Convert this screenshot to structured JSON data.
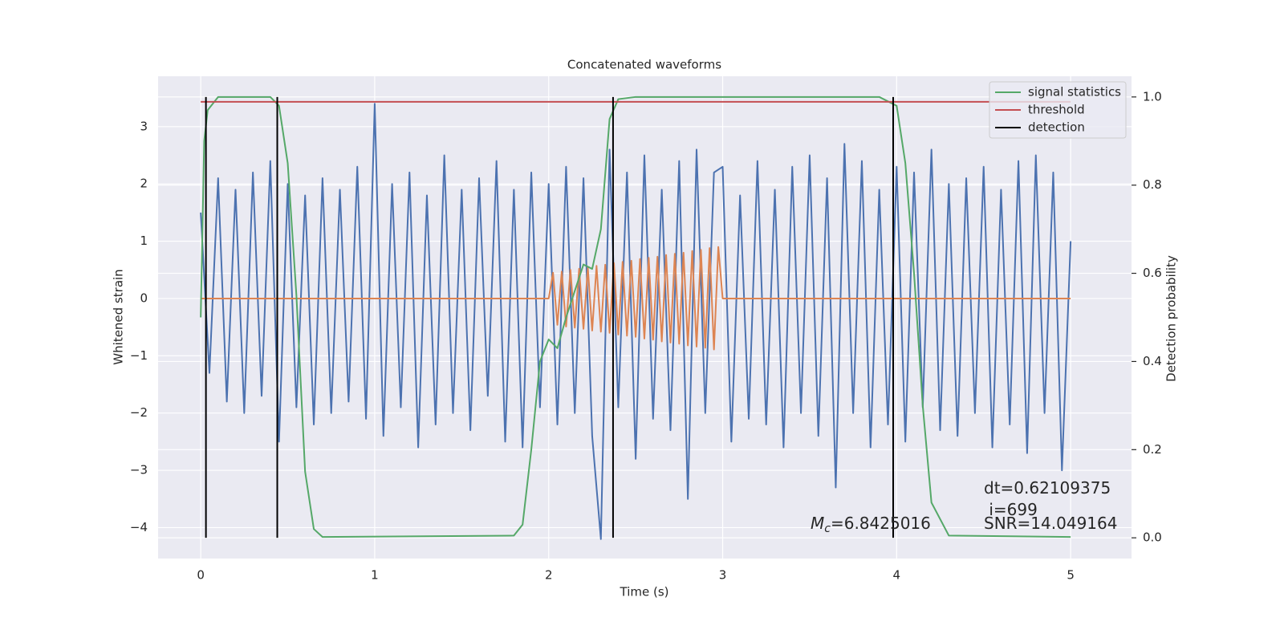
{
  "chart_data": {
    "type": "line",
    "title": "Concatenated waveforms",
    "xlabel": "Time (s)",
    "ylabel": "Whitened strain",
    "y2label": "Detection probability",
    "xlim": [
      -0.245,
      5.35
    ],
    "ylim": [
      -4.54,
      3.88
    ],
    "y2lim": [
      -0.047,
      1.047
    ],
    "xticks": [
      0,
      1,
      2,
      3,
      4,
      5
    ],
    "yticks": [
      {
        "value": -4,
        "label": "−4"
      },
      {
        "value": -3,
        "label": "−3"
      },
      {
        "value": -2,
        "label": "−2"
      },
      {
        "value": -1,
        "label": "−1"
      },
      0,
      1,
      2,
      3
    ],
    "y2ticks": [
      {
        "value": 0,
        "label": "0.0"
      },
      0.2,
      0.4,
      0.6,
      0.8,
      {
        "value": 1,
        "label": "1.0"
      }
    ],
    "grid": true,
    "legend": "upper right",
    "series": [
      {
        "color": "#4c72b0",
        "axis": "y",
        "x": [
          0,
          0.05,
          0.1,
          0.15,
          0.2,
          0.25,
          0.3,
          0.35,
          0.4,
          0.45,
          0.5,
          0.55,
          0.6,
          0.65,
          0.7,
          0.75,
          0.8,
          0.85,
          0.9,
          0.95,
          1,
          1.05,
          1.1,
          1.15,
          1.2,
          1.25,
          1.3,
          1.35,
          1.4,
          1.45,
          1.5,
          1.55,
          1.6,
          1.65,
          1.7,
          1.75,
          1.8,
          1.85,
          1.9,
          1.95,
          2,
          2.05,
          2.1,
          2.15,
          2.2,
          2.25,
          2.3,
          2.35,
          2.4,
          2.45,
          2.5,
          2.55,
          2.6,
          2.65,
          2.7,
          2.75,
          2.8,
          2.85,
          2.9,
          2.95,
          3,
          3.05,
          3.1,
          3.15,
          3.2,
          3.25,
          3.3,
          3.35,
          3.4,
          3.45,
          3.5,
          3.55,
          3.6,
          3.65,
          3.7,
          3.75,
          3.8,
          3.85,
          3.9,
          3.95,
          4,
          4.05,
          4.1,
          4.15,
          4.2,
          4.25,
          4.3,
          4.35,
          4.4,
          4.45,
          4.5,
          4.55,
          4.6,
          4.65,
          4.7,
          4.75,
          4.8,
          4.85,
          4.9,
          4.95,
          5
        ],
        "values": [
          1.5,
          -1.3,
          2.1,
          -1.8,
          1.9,
          -2.0,
          2.2,
          -1.7,
          2.4,
          -2.5,
          2.0,
          -1.9,
          1.8,
          -2.2,
          2.1,
          -2.0,
          1.9,
          -1.8,
          2.3,
          -2.1,
          3.4,
          -2.4,
          2.0,
          -1.9,
          2.2,
          -2.6,
          1.8,
          -2.2,
          2.5,
          -2.0,
          1.9,
          -2.3,
          2.1,
          -1.7,
          2.4,
          -2.5,
          1.9,
          -2.6,
          2.2,
          -1.9,
          2.0,
          -2.2,
          2.3,
          -2.0,
          2.1,
          -2.4,
          -4.2,
          2.6,
          -1.9,
          2.2,
          -2.8,
          2.5,
          -2.1,
          1.9,
          -2.3,
          2.4,
          -3.5,
          2.6,
          -2.0,
          2.2,
          2.3,
          -2.5,
          1.8,
          -2.1,
          2.4,
          -2.2,
          1.9,
          -2.6,
          2.3,
          -2.0,
          2.5,
          -2.4,
          2.1,
          -3.3,
          2.7,
          -2.0,
          2.4,
          -2.6,
          1.9,
          -2.2,
          2.3,
          -2.5,
          2.2,
          -1.9,
          2.6,
          -2.3,
          2.0,
          -2.4,
          2.1,
          -2.0,
          2.3,
          -2.6,
          1.9,
          -2.2,
          2.4,
          -2.7,
          2.5,
          -2.0,
          2.2,
          -3.0,
          1.0
        ]
      },
      {
        "color": "#dd8452",
        "axis": "y",
        "x": [
          0,
          2,
          2.025,
          2.05,
          2.075,
          2.1,
          2.125,
          2.15,
          2.175,
          2.2,
          2.225,
          2.25,
          2.275,
          2.3,
          2.325,
          2.35,
          2.375,
          2.4,
          2.425,
          2.45,
          2.475,
          2.5,
          2.525,
          2.55,
          2.575,
          2.6,
          2.625,
          2.65,
          2.675,
          2.7,
          2.725,
          2.75,
          2.775,
          2.8,
          2.825,
          2.85,
          2.875,
          2.9,
          2.925,
          2.95,
          2.975,
          3,
          5
        ],
        "values": [
          0,
          0,
          0.45,
          -0.46,
          0.47,
          -0.49,
          0.5,
          -0.51,
          0.52,
          -0.53,
          0.54,
          -0.56,
          0.57,
          -0.58,
          0.59,
          -0.6,
          0.62,
          -0.63,
          0.64,
          -0.65,
          0.66,
          -0.67,
          0.69,
          -0.7,
          0.71,
          -0.72,
          0.73,
          -0.75,
          0.76,
          -0.77,
          0.78,
          -0.79,
          0.8,
          -0.82,
          0.83,
          -0.84,
          0.85,
          -0.86,
          0.88,
          -0.89,
          0.9,
          0,
          0
        ]
      },
      {
        "name": "signal statistics",
        "color": "#55a868",
        "axis": "y2",
        "x": [
          0,
          0.02,
          0.04,
          0.1,
          0.4,
          0.45,
          0.5,
          0.55,
          0.6,
          0.65,
          0.7,
          1.8,
          1.85,
          1.9,
          1.95,
          2.0,
          2.05,
          2.1,
          2.2,
          2.25,
          2.3,
          2.35,
          2.4,
          2.5,
          3.9,
          4.0,
          4.05,
          4.1,
          4.15,
          4.2,
          4.3,
          5
        ],
        "values": [
          0.5,
          0.9,
          0.97,
          1.0,
          1.0,
          0.98,
          0.85,
          0.55,
          0.15,
          0.02,
          0.002,
          0.005,
          0.03,
          0.2,
          0.4,
          0.45,
          0.43,
          0.5,
          0.62,
          0.61,
          0.7,
          0.95,
          0.995,
          1.0,
          1.0,
          0.98,
          0.85,
          0.6,
          0.3,
          0.08,
          0.005,
          0.002
        ]
      },
      {
        "name": "threshold",
        "color": "#c44e52",
        "axis": "y2",
        "x": [
          0,
          5
        ],
        "values": [
          0.989,
          0.989
        ]
      },
      {
        "name": "detection",
        "color": "#000000",
        "axis": "y2",
        "style": "vlines",
        "x": [
          0.03,
          0.44,
          2.37,
          3.98
        ],
        "values": [
          1,
          1,
          1,
          1
        ]
      }
    ],
    "annotations": [
      {
        "text": "dt=0.62109375"
      },
      {
        "text": " i=699"
      },
      {
        "text": "SNR=14.049164"
      },
      {
        "symbol": "M",
        "subscript": "c",
        "text": "=6.8425016"
      }
    ]
  }
}
